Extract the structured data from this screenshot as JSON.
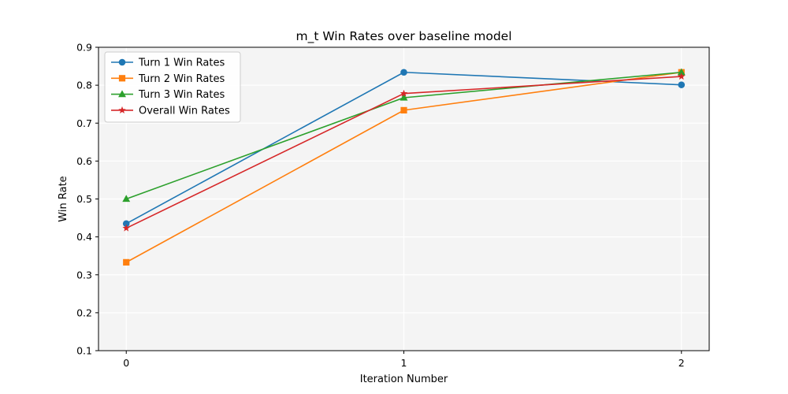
{
  "chart_data": {
    "type": "line",
    "title": "m_t Win Rates over baseline model",
    "xlabel": "Iteration Number",
    "ylabel": "Win Rate",
    "x": [
      0,
      1,
      2
    ],
    "x_ticks": [
      "0",
      "1",
      "2"
    ],
    "xlim": [
      -0.1,
      2.1
    ],
    "ylim": [
      0.1,
      0.9
    ],
    "y_ticks": [
      "0.1",
      "0.2",
      "0.3",
      "0.4",
      "0.5",
      "0.6",
      "0.7",
      "0.8",
      "0.9"
    ],
    "grid": true,
    "legend_position": "upper-left",
    "background": "#f4f4f4",
    "series": [
      {
        "name": "Turn 1 Win Rates",
        "values": [
          0.435,
          0.834,
          0.801
        ],
        "color": "#1f77b4",
        "marker": "circle"
      },
      {
        "name": "Turn 2 Win Rates",
        "values": [
          0.333,
          0.734,
          0.834
        ],
        "color": "#ff7f0e",
        "marker": "square"
      },
      {
        "name": "Turn 3 Win Rates",
        "values": [
          0.5,
          0.767,
          0.834
        ],
        "color": "#2ca02c",
        "marker": "triangle"
      },
      {
        "name": "Overall Win Rates",
        "values": [
          0.423,
          0.778,
          0.823
        ],
        "color": "#d62728",
        "marker": "star"
      }
    ]
  }
}
